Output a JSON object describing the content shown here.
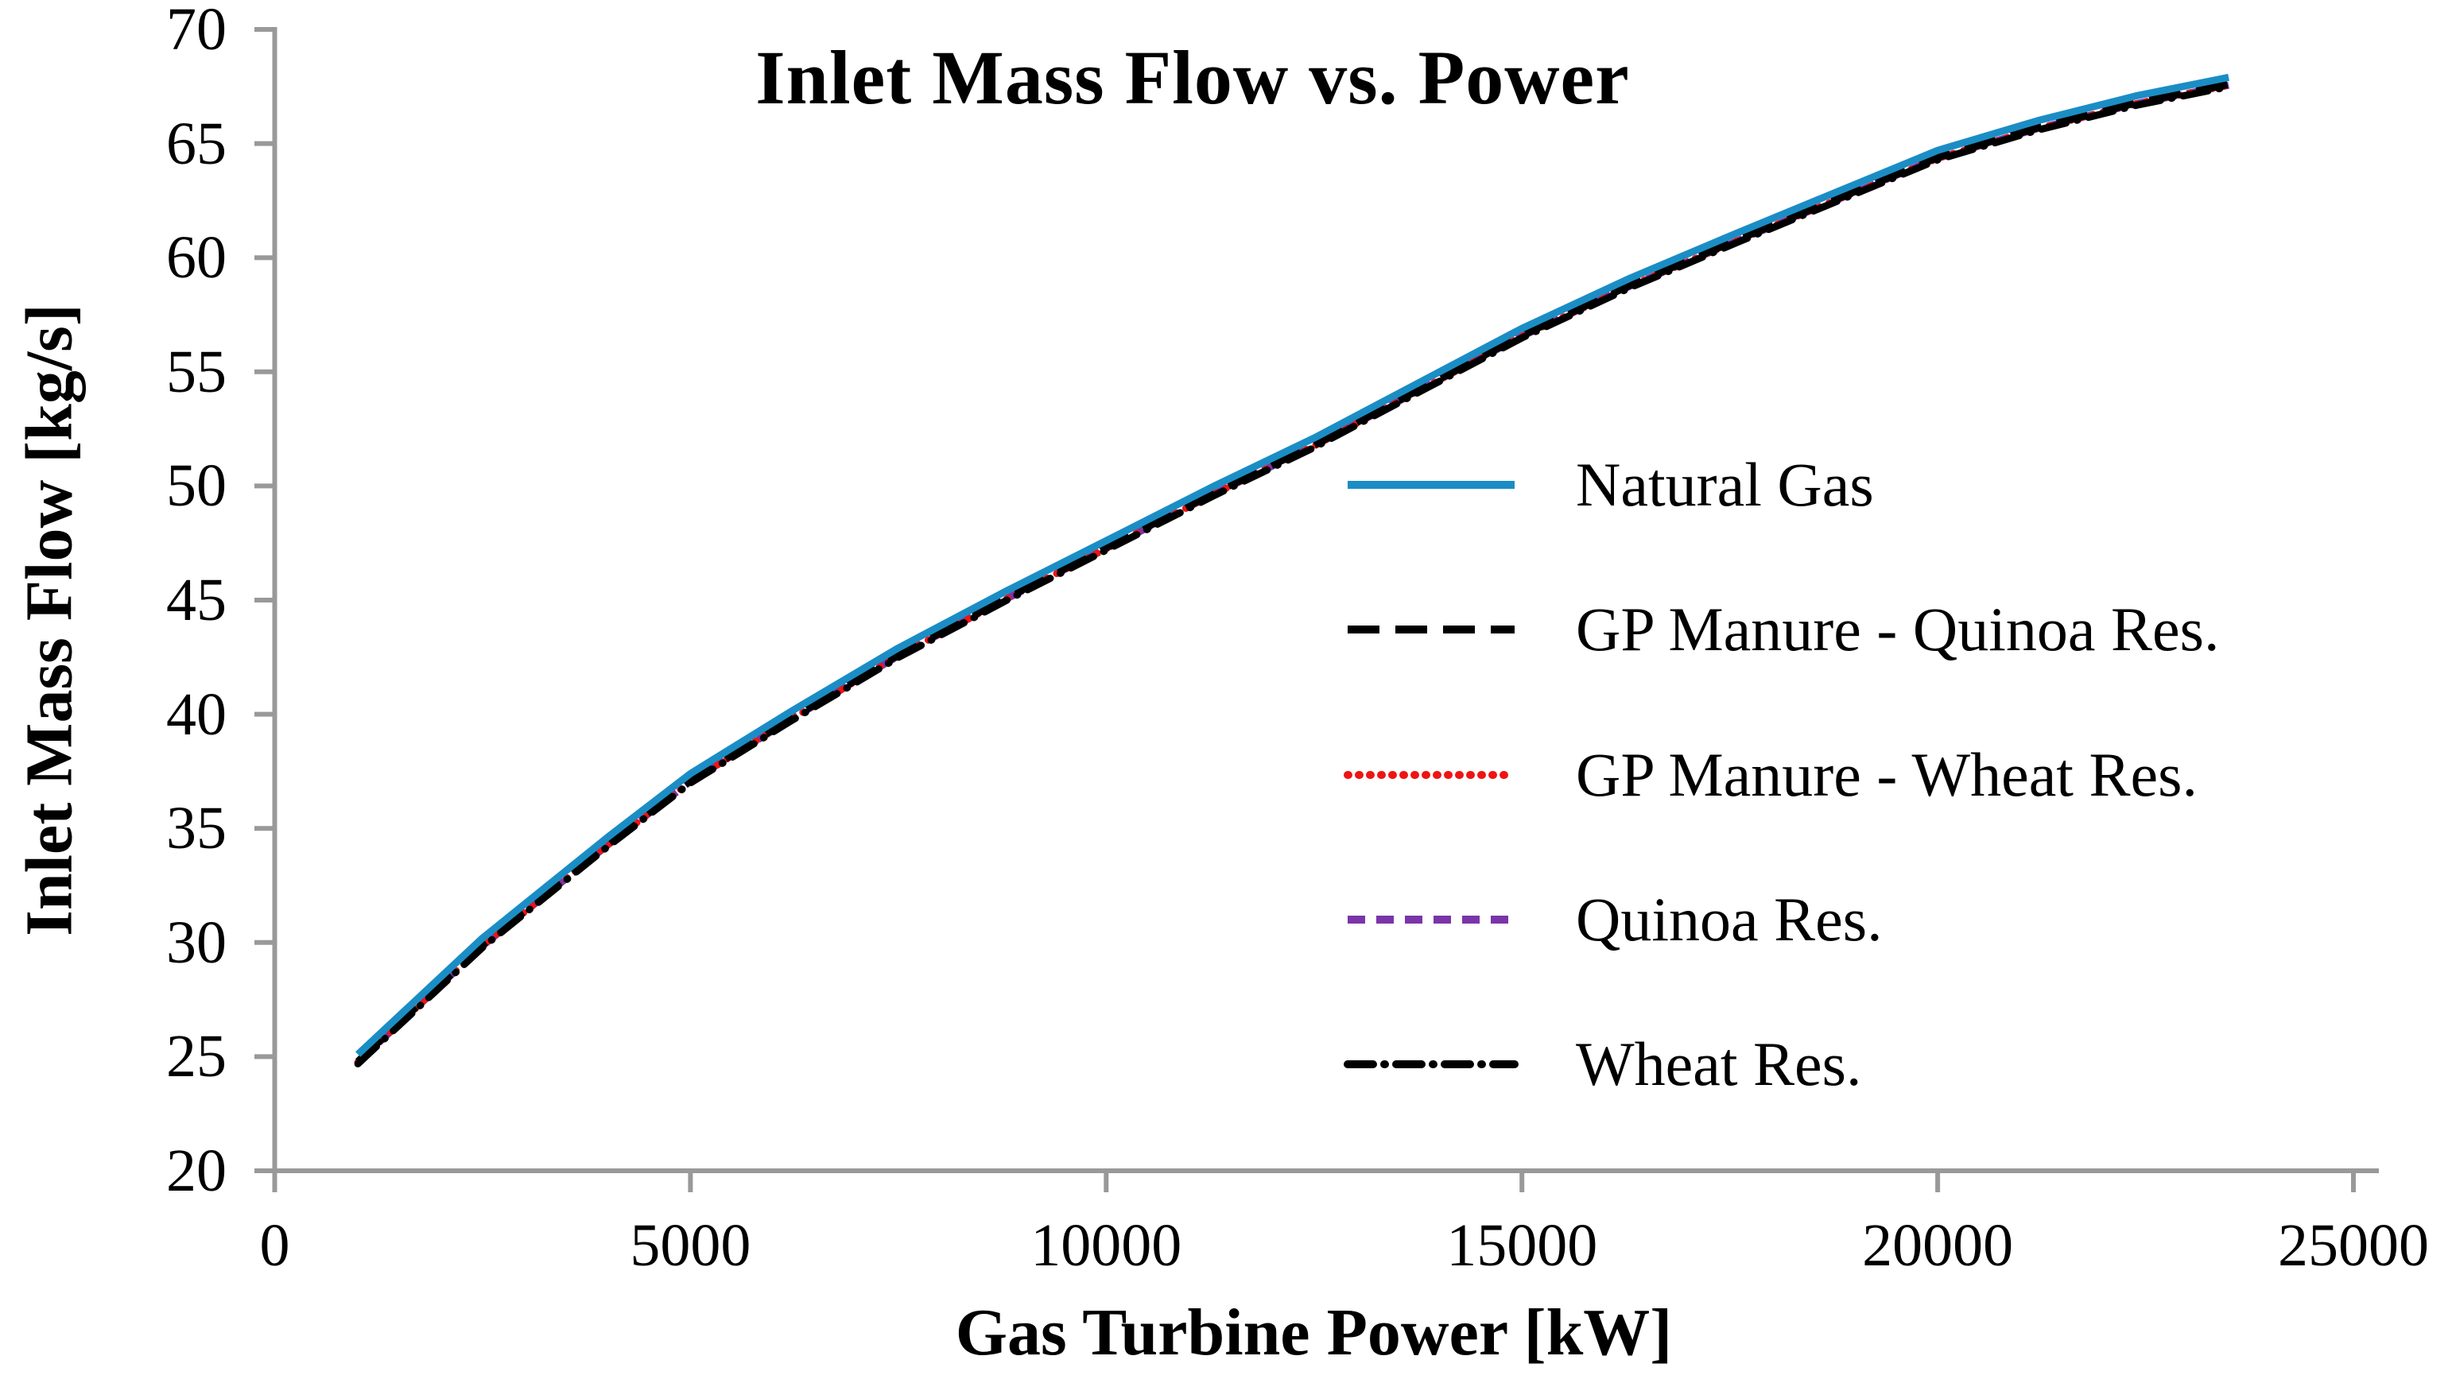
{
  "page": {
    "background": "#FFFFFF"
  },
  "chart_data": {
    "type": "line",
    "title": "Inlet Mass Flow vs. Power",
    "xlabel": "Gas Turbine Power [kW]",
    "ylabel": "Inlet Mass Flow [kg/s]",
    "xlim": [
      0,
      25000
    ],
    "ylim": [
      20,
      70
    ],
    "x_ticks": [
      0,
      5000,
      10000,
      15000,
      20000,
      25000
    ],
    "y_ticks": [
      20,
      25,
      30,
      35,
      40,
      45,
      50,
      55,
      60,
      65,
      70
    ],
    "grid": false,
    "legend_position": "inside-right",
    "axis_color": "#999999",
    "text_color": "#000000",
    "x": [
      1000,
      2500,
      4000,
      5000,
      6200,
      7500,
      8800,
      10000,
      11300,
      12500,
      13800,
      15000,
      16300,
      17600,
      18800,
      20000,
      21200,
      22400,
      23500
    ],
    "series": [
      {
        "name": "Natural Gas",
        "color": "#1B8DC5",
        "line_style": "solid",
        "values": [
          25.1,
          30.2,
          34.6,
          37.4,
          40.1,
          42.9,
          45.4,
          47.6,
          50.0,
          52.1,
          54.6,
          56.9,
          59.1,
          61.1,
          62.9,
          64.7,
          66.0,
          67.1,
          67.9
        ]
      },
      {
        "name": "GP Manure - Quinoa Res.",
        "color": "#000000",
        "line_style": "long-dash",
        "values": [
          25.0,
          30.1,
          34.5,
          37.3,
          40.0,
          42.8,
          45.3,
          47.5,
          49.9,
          52.0,
          54.5,
          56.8,
          59.0,
          61.0,
          62.8,
          64.6,
          65.9,
          67.0,
          67.8
        ]
      },
      {
        "name": "GP Manure - Wheat Res.",
        "color": "#EE1414",
        "line_style": "dot",
        "values": [
          25.0,
          30.1,
          34.5,
          37.3,
          40.0,
          42.8,
          45.3,
          47.5,
          49.9,
          52.0,
          54.5,
          56.8,
          59.0,
          61.0,
          62.8,
          64.6,
          65.9,
          67.0,
          67.8
        ]
      },
      {
        "name": "Quinoa Res.",
        "color": "#7A35A8",
        "line_style": "dash",
        "values": [
          25.0,
          30.1,
          34.5,
          37.3,
          40.0,
          42.8,
          45.3,
          47.5,
          49.9,
          52.0,
          54.5,
          56.8,
          59.0,
          61.0,
          62.8,
          64.6,
          65.9,
          67.0,
          67.8
        ]
      },
      {
        "name": "Wheat Res.",
        "color": "#000000",
        "line_style": "dash-dot",
        "values": [
          25.0,
          30.1,
          34.5,
          37.3,
          40.0,
          42.8,
          45.3,
          47.5,
          49.9,
          52.0,
          54.5,
          56.8,
          59.0,
          61.0,
          62.8,
          64.6,
          65.9,
          67.0,
          67.8
        ]
      }
    ]
  }
}
